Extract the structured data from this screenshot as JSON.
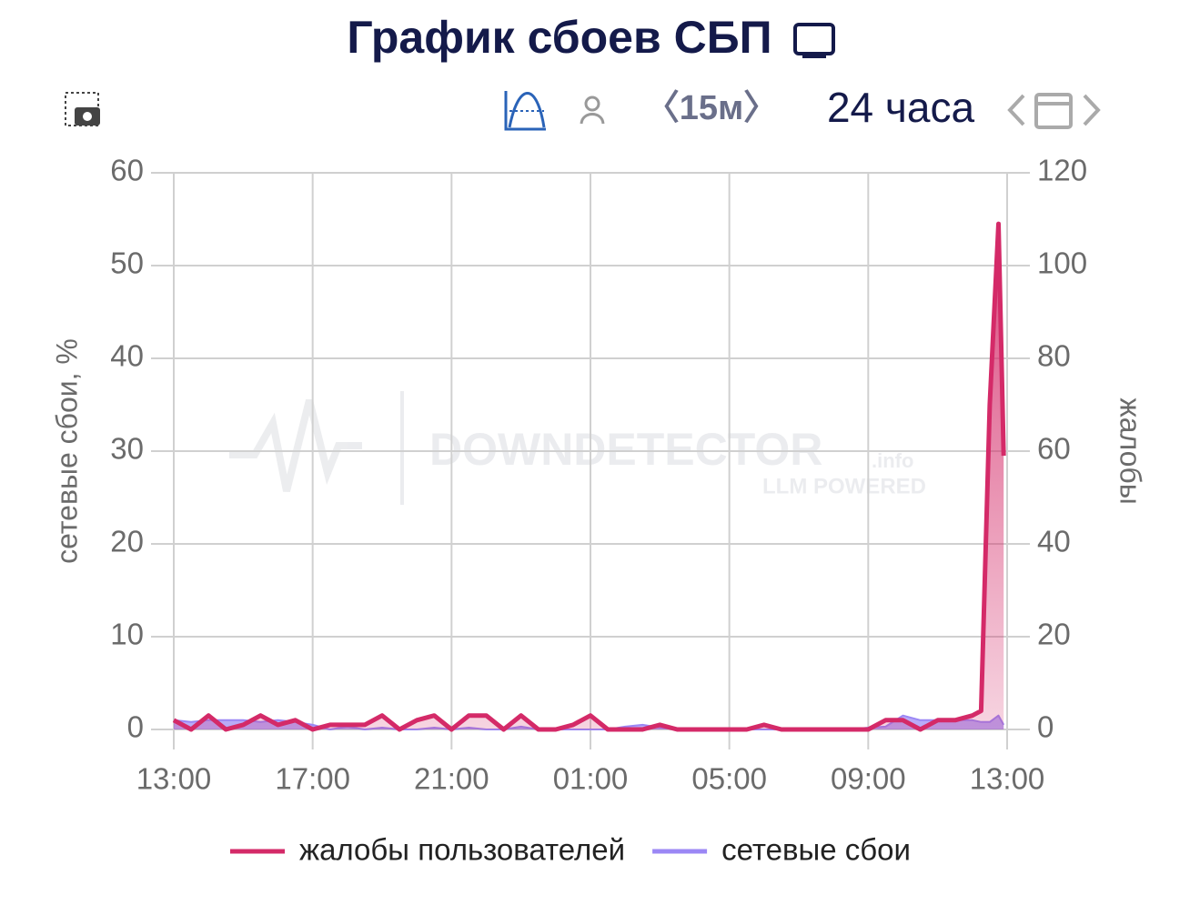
{
  "header": {
    "title": "График сбоев СБП",
    "interval": "〈15м〉",
    "period": "24 часа"
  },
  "watermark": {
    "brand": "DOWNDETECTOR",
    "suffix": ".info",
    "tagline": "LLM POWERED"
  },
  "chart_data": {
    "type": "line",
    "y_label": "сетевые сбои, %",
    "y2_label": "жалобы",
    "x": [
      0,
      0.5,
      1,
      1.5,
      2,
      2.5,
      3,
      3.5,
      4,
      4.5,
      5,
      5.5,
      6,
      6.5,
      7,
      7.5,
      8,
      8.5,
      9,
      9.5,
      10,
      10.5,
      11,
      11.5,
      12,
      12.5,
      13,
      13.5,
      14,
      14.5,
      15,
      15.5,
      16,
      16.5,
      17,
      17.5,
      18,
      18.5,
      19,
      19.5,
      20,
      20.5,
      21,
      21.5,
      22,
      22.5,
      23,
      23.25,
      23.5,
      23.75,
      23.9
    ],
    "xlim": [
      0,
      24
    ],
    "xticks": [
      {
        "value": 0,
        "label": "13:00"
      },
      {
        "value": 4,
        "label": "17:00"
      },
      {
        "value": 8,
        "label": "21:00"
      },
      {
        "value": 12,
        "label": "01:00"
      },
      {
        "value": 16,
        "label": "05:00"
      },
      {
        "value": 20,
        "label": "09:00"
      },
      {
        "value": 24,
        "label": "13:00"
      }
    ],
    "ylim": [
      0,
      60
    ],
    "yticks": [
      0,
      10,
      20,
      30,
      40,
      50,
      60
    ],
    "y2lim": [
      0,
      120
    ],
    "y2ticks": [
      0,
      20,
      40,
      60,
      80,
      100,
      120
    ],
    "grid": true,
    "legend": "bottom",
    "series": [
      {
        "name": "жалобы пользователей",
        "color": "#d42a68",
        "axis": "y2",
        "values": [
          2,
          0,
          3,
          0,
          1,
          3,
          1,
          2,
          0,
          1,
          1,
          1,
          3,
          0,
          2,
          3,
          0,
          3,
          3,
          0,
          3,
          0,
          0,
          1,
          3,
          0,
          0,
          0,
          1,
          0,
          0,
          0,
          0,
          0,
          1,
          0,
          0,
          0,
          0,
          0,
          0,
          2,
          2,
          0,
          2,
          2,
          3,
          4,
          70,
          109,
          59
        ]
      },
      {
        "name": "сетевые сбои",
        "color": "#9b87f5",
        "values": [
          1,
          0.8,
          1,
          1,
          1,
          0.8,
          1,
          0.8,
          0.5,
          0,
          0.3,
          0,
          0.2,
          0,
          0,
          0.2,
          0,
          0.2,
          0,
          0,
          0.3,
          0,
          0,
          0,
          0,
          0,
          0.3,
          0.5,
          0.2,
          0,
          0,
          0,
          0,
          0,
          0,
          0,
          0,
          0,
          0,
          0,
          0.2,
          0.3,
          1.5,
          1,
          1,
          1,
          1,
          0.8,
          0.8,
          1.5,
          0.5
        ]
      }
    ]
  }
}
